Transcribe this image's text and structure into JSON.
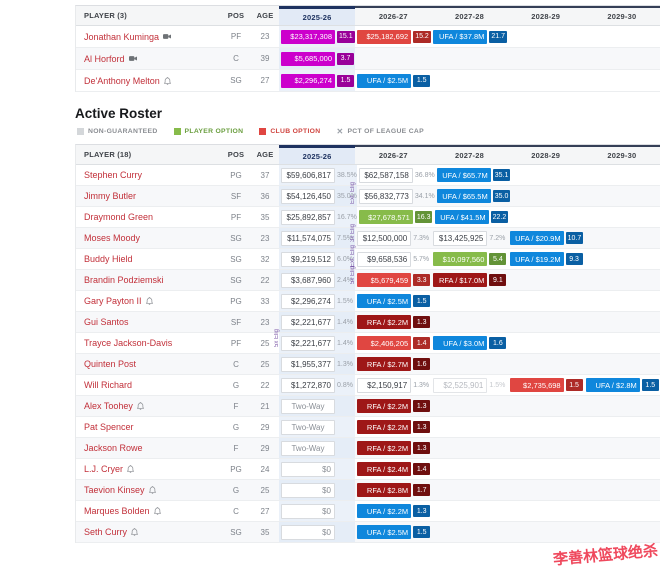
{
  "watermark": "李善林篮球绝杀",
  "seasons": [
    "2025-26",
    "2026-27",
    "2027-28",
    "2028-29",
    "2029-30"
  ],
  "section_title": "Active Roster",
  "legend": [
    {
      "label": "NON-GUARANTEED",
      "swatch": "#d4d7da",
      "text_color": "#8a8d92"
    },
    {
      "label": "PLAYER OPTION",
      "swatch": "#87bb4a",
      "text_color": "#6a9e3f"
    },
    {
      "label": "CLUB OPTION",
      "swatch": "#e04641",
      "text_color": "#d04540"
    },
    {
      "label": "PCT OF LEAGUE CAP",
      "swatch": null,
      "glyph": "✕",
      "text_color": "#8a8d92"
    }
  ],
  "colors": {
    "mag": [
      "#cc00cc",
      "#990099"
    ],
    "club": [
      "#e04641",
      "#ad2b27"
    ],
    "ufa": [
      "#0f87dc",
      "#0a5fa3"
    ],
    "rfa": [
      "#9e1717",
      "#6f0f0f"
    ],
    "po": [
      "#87bb4a",
      "#639337"
    ]
  },
  "top_table": {
    "player_header": "PLAYER (3)",
    "pos_header": "POS",
    "age_header": "AGE",
    "rows": [
      {
        "name": "Jonathan Kuminga",
        "icon": "camera",
        "pos": "PF",
        "age": "23",
        "cells": [
          {
            "col": 0,
            "style": "mag",
            "text": "$23,317,308",
            "pct": "15.1"
          },
          {
            "col": 1,
            "style": "club",
            "text": "$25,182,692",
            "pct": "15.2"
          },
          {
            "col": 2,
            "style": "ufa",
            "text": "UFA / $37.8M",
            "pct": "21.7"
          }
        ]
      },
      {
        "name": "Al Horford",
        "icon": "camera",
        "pos": "C",
        "age": "39",
        "cells": [
          {
            "col": 0,
            "style": "mag",
            "text": "$5,685,000",
            "pct": "3.7"
          }
        ]
      },
      {
        "name": "De'Anthony Melton",
        "icon": "bell",
        "pos": "SG",
        "age": "27",
        "cells": [
          {
            "col": 0,
            "style": "mag",
            "text": "$2,296,274",
            "pct": "1.5"
          },
          {
            "col": 1,
            "style": "ufa",
            "text": "UFA / $2.5M",
            "pct": "1.5"
          }
        ]
      }
    ]
  },
  "main_table": {
    "player_header": "PLAYER (18)",
    "pos_header": "POS",
    "age_header": "AGE",
    "rows": [
      {
        "name": "Stephen Curry",
        "icon": null,
        "pos": "PG",
        "age": "37",
        "cells": [
          {
            "col": 0,
            "style": "plain",
            "text": "$59,606,817",
            "pct": "38.5%"
          },
          {
            "col": 1,
            "style": "plain",
            "text": "$62,587,158",
            "pct": "36.8%"
          },
          {
            "col": 2,
            "style": "ufa",
            "text": "UFA / $65.7M",
            "pct": "35.1"
          }
        ]
      },
      {
        "name": "Jimmy Butler",
        "icon": null,
        "pos": "SF",
        "age": "36",
        "elig": {
          "col": 1,
          "text": "Ext. Elig"
        },
        "cells": [
          {
            "col": 0,
            "style": "plain",
            "text": "$54,126,450",
            "pct": "35.0%"
          },
          {
            "col": 1,
            "style": "plain",
            "text": "$56,832,773",
            "pct": "34.1%"
          },
          {
            "col": 2,
            "style": "ufa",
            "text": "UFA / $65.5M",
            "pct": "35.0"
          }
        ]
      },
      {
        "name": "Draymond Green",
        "icon": null,
        "pos": "PF",
        "age": "35",
        "cells": [
          {
            "col": 0,
            "style": "plain",
            "text": "$25,892,857",
            "pct": "16.7%"
          },
          {
            "col": 1,
            "style": "po",
            "text": "$27,678,571",
            "pct": "16.3"
          },
          {
            "col": 2,
            "style": "ufa",
            "text": "UFA / $41.5M",
            "pct": "22.2"
          }
        ]
      },
      {
        "name": "Moses Moody",
        "icon": null,
        "pos": "SG",
        "age": "23",
        "elig": {
          "col": 1,
          "text": "3x Elig"
        },
        "cells": [
          {
            "col": 0,
            "style": "plain",
            "text": "$11,574,075",
            "pct": "7.5%"
          },
          {
            "col": 1,
            "style": "plain",
            "text": "$12,500,000",
            "pct": "7.3%"
          },
          {
            "col": 2,
            "style": "plain",
            "text": "$13,425,925",
            "pct": "7.2%"
          },
          {
            "col": 3,
            "style": "ufa",
            "text": "UFA / $20.9M",
            "pct": "10.7"
          }
        ]
      },
      {
        "name": "Buddy Hield",
        "icon": null,
        "pos": "SG",
        "age": "32",
        "elig": {
          "col": 1,
          "text": "Ext. Elig"
        },
        "cells": [
          {
            "col": 0,
            "style": "plain",
            "text": "$9,219,512",
            "pct": "6.0%"
          },
          {
            "col": 1,
            "style": "plain",
            "text": "$9,658,536",
            "pct": "5.7%"
          },
          {
            "col": 2,
            "style": "po",
            "text": "$10,097,560",
            "pct": "5.4"
          },
          {
            "col": 3,
            "style": "ufa",
            "text": "UFA / $19.2M",
            "pct": "9.3"
          }
        ]
      },
      {
        "name": "Brandin Podziemski",
        "icon": null,
        "pos": "SG",
        "age": "22",
        "elig": {
          "col": 1,
          "text": "5x Elig"
        },
        "cells": [
          {
            "col": 0,
            "style": "plain",
            "text": "$3,687,960",
            "pct": "2.4%"
          },
          {
            "col": 1,
            "style": "club",
            "text": "$5,679,459",
            "pct": "3.3"
          },
          {
            "col": 2,
            "style": "rfa",
            "text": "RFA / $17.0M",
            "pct": "9.1"
          }
        ]
      },
      {
        "name": "Gary Payton II",
        "icon": "bell",
        "pos": "PG",
        "age": "33",
        "cells": [
          {
            "col": 0,
            "style": "plain",
            "text": "$2,296,274",
            "pct": "1.5%"
          },
          {
            "col": 1,
            "style": "ufa",
            "text": "UFA / $2.5M",
            "pct": "1.5"
          }
        ]
      },
      {
        "name": "Gui Santos",
        "icon": null,
        "pos": "SF",
        "age": "23",
        "cells": [
          {
            "col": 0,
            "style": "plain",
            "text": "$2,221,677",
            "pct": "1.4%"
          },
          {
            "col": 1,
            "style": "rfa",
            "text": "RFA / $2.2M",
            "pct": "1.3"
          }
        ]
      },
      {
        "name": "Trayce Jackson-Davis",
        "icon": null,
        "pos": "PF",
        "age": "25",
        "elig": {
          "col": 0,
          "text": "5x Elig"
        },
        "cells": [
          {
            "col": 0,
            "style": "plain",
            "text": "$2,221,677",
            "pct": "1.4%"
          },
          {
            "col": 1,
            "style": "club",
            "text": "$2,406,205",
            "pct": "1.4"
          },
          {
            "col": 2,
            "style": "ufa",
            "text": "UFA / $3.0M",
            "pct": "1.6"
          }
        ]
      },
      {
        "name": "Quinten Post",
        "icon": null,
        "pos": "C",
        "age": "25",
        "cells": [
          {
            "col": 0,
            "style": "plain",
            "text": "$1,955,377",
            "pct": "1.3%"
          },
          {
            "col": 1,
            "style": "rfa",
            "text": "RFA / $2.7M",
            "pct": "1.6"
          }
        ]
      },
      {
        "name": "Will Richard",
        "icon": null,
        "pos": "G",
        "age": "22",
        "cells": [
          {
            "col": 0,
            "style": "plain",
            "text": "$1,272,870",
            "pct": "0.8%"
          },
          {
            "col": 1,
            "style": "plain",
            "text": "$2,150,917",
            "pct": "1.3%"
          },
          {
            "col": 2,
            "style": "ng",
            "text": "$2,525,901",
            "pct": "1.5%"
          },
          {
            "col": 3,
            "style": "club",
            "text": "$2,735,698",
            "pct": "1.5"
          },
          {
            "col": 4,
            "style": "ufa",
            "text": "UFA / $2.8M",
            "pct": "1.5"
          }
        ]
      },
      {
        "name": "Alex Toohey",
        "icon": "bell",
        "pos": "F",
        "age": "21",
        "cells": [
          {
            "col": 0,
            "style": "twoway",
            "text": "Two-Way"
          },
          {
            "col": 1,
            "style": "rfa",
            "text": "RFA / $2.2M",
            "pct": "1.3"
          }
        ]
      },
      {
        "name": "Pat Spencer",
        "icon": null,
        "pos": "G",
        "age": "29",
        "cells": [
          {
            "col": 0,
            "style": "twoway",
            "text": "Two-Way"
          },
          {
            "col": 1,
            "style": "rfa",
            "text": "RFA / $2.2M",
            "pct": "1.3"
          }
        ]
      },
      {
        "name": "Jackson Rowe",
        "icon": null,
        "pos": "F",
        "age": "29",
        "cells": [
          {
            "col": 0,
            "style": "twoway",
            "text": "Two-Way"
          },
          {
            "col": 1,
            "style": "rfa",
            "text": "RFA / $2.2M",
            "pct": "1.3"
          }
        ]
      },
      {
        "name": "L.J. Cryer",
        "icon": "bell",
        "pos": "PG",
        "age": "24",
        "cells": [
          {
            "col": 0,
            "style": "zero",
            "text": "$0"
          },
          {
            "col": 1,
            "style": "rfa",
            "text": "RFA / $2.4M",
            "pct": "1.4"
          }
        ]
      },
      {
        "name": "Taevion Kinsey",
        "icon": "bell",
        "pos": "G",
        "age": "25",
        "cells": [
          {
            "col": 0,
            "style": "zero",
            "text": "$0"
          },
          {
            "col": 1,
            "style": "rfa",
            "text": "RFA / $2.8M",
            "pct": "1.7"
          }
        ]
      },
      {
        "name": "Marques Bolden",
        "icon": "bell",
        "pos": "C",
        "age": "27",
        "cells": [
          {
            "col": 0,
            "style": "zero",
            "text": "$0"
          },
          {
            "col": 1,
            "style": "ufa",
            "text": "UFA / $2.2M",
            "pct": "1.3"
          }
        ]
      },
      {
        "name": "Seth Curry",
        "icon": "bell",
        "pos": "SG",
        "age": "35",
        "cells": [
          {
            "col": 0,
            "style": "zero",
            "text": "$0"
          },
          {
            "col": 1,
            "style": "ufa",
            "text": "UFA / $2.5M",
            "pct": "1.5"
          }
        ]
      }
    ]
  }
}
